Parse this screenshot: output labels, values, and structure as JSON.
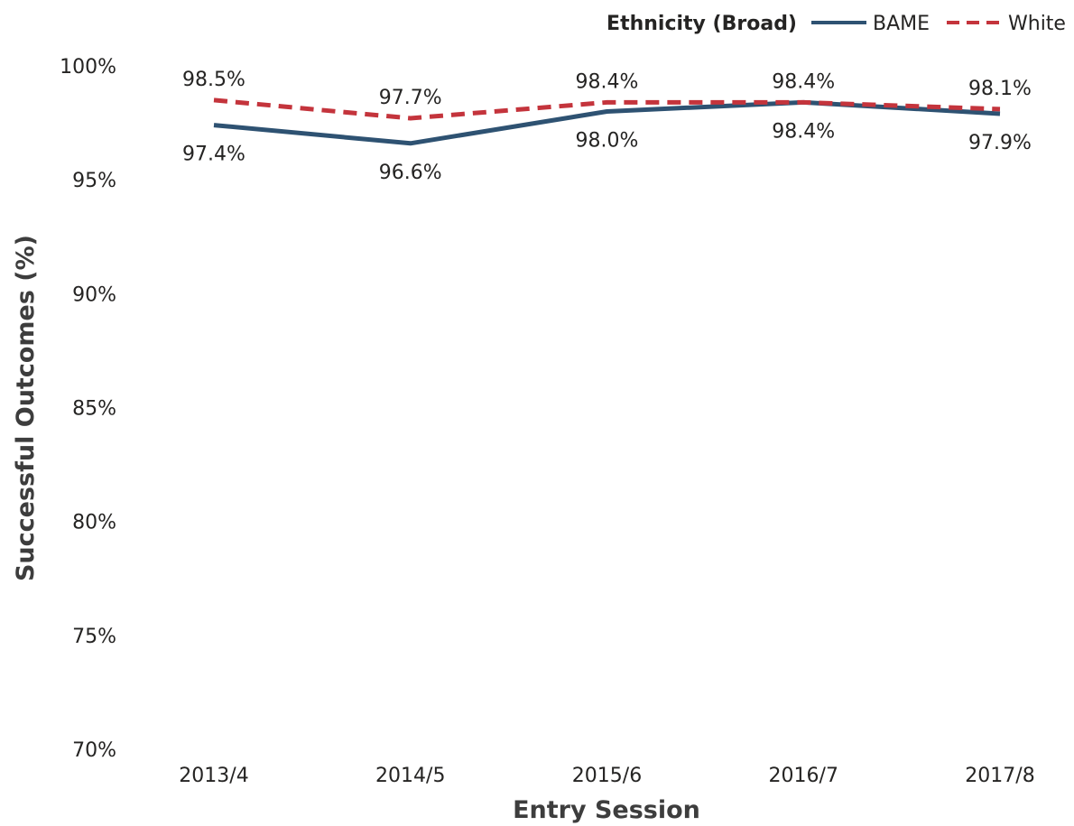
{
  "chart_data": {
    "type": "line",
    "categories": [
      "2013/4",
      "2014/5",
      "2015/6",
      "2016/7",
      "2017/8"
    ],
    "series": [
      {
        "name": "BAME",
        "values": [
          97.4,
          96.6,
          98.0,
          98.4,
          97.9
        ],
        "color": "#2e5272",
        "style": "solid"
      },
      {
        "name": "White",
        "values": [
          98.5,
          97.7,
          98.4,
          98.4,
          98.1
        ],
        "color": "#c4343c",
        "style": "dashed"
      }
    ],
    "data_labels": {
      "BAME": [
        "97.4%",
        "96.6%",
        "98.0%",
        "98.4%",
        "97.9%"
      ],
      "White": [
        "98.5%",
        "97.7%",
        "98.4%",
        "98.4%",
        "98.1%"
      ]
    },
    "xlabel": "Entry Session",
    "ylabel": "Successful Outcomes (%)",
    "ylim": [
      70,
      100
    ],
    "yticks": [
      70,
      75,
      80,
      85,
      90,
      95,
      100
    ],
    "ytick_labels": [
      "70%",
      "75%",
      "80%",
      "85%",
      "90%",
      "95%",
      "100%"
    ],
    "legend": {
      "title": "Ethnicity (Broad)",
      "placement": "top-right"
    },
    "grid": false
  }
}
